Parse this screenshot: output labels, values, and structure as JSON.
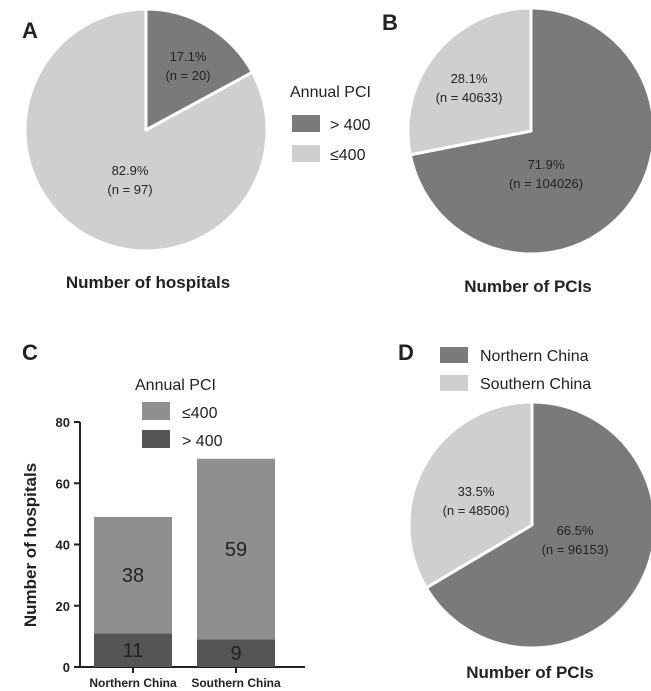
{
  "colors": {
    "dark": "#7a7a7a",
    "light": "#cfcfcf",
    "bar_light": "#8f8f8f",
    "bar_dark": "#555555"
  },
  "panels": {
    "A": {
      "letter": "A",
      "caption": "Number of hospitals"
    },
    "B": {
      "letter": "B",
      "caption": "Number of PCIs"
    },
    "C": {
      "letter": "C"
    },
    "D": {
      "letter": "D",
      "caption": "Number of PCIs"
    }
  },
  "legend_ab": {
    "title": "Annual PCI",
    "items": [
      "> 400",
      "≤400"
    ]
  },
  "legend_c": {
    "title": "Annual PCI",
    "items": [
      "≤400",
      "> 400"
    ]
  },
  "legend_d": {
    "items": [
      "Northern China",
      "Southern China"
    ]
  },
  "chart_data": [
    {
      "type": "pie",
      "panel": "A",
      "caption": "Number of hospitals",
      "slices": [
        {
          "label": "> 400",
          "value": 20,
          "percent": "17.1%",
          "n_text": "(n = 20)"
        },
        {
          "label": "≤400",
          "value": 97,
          "percent": "82.9%",
          "n_text": "(n = 97)"
        }
      ]
    },
    {
      "type": "pie",
      "panel": "B",
      "caption": "Number of PCIs",
      "slices": [
        {
          "label": "> 400",
          "value": 104026,
          "percent": "71.9%",
          "n_text": "(n = 104026)"
        },
        {
          "label": "≤400",
          "value": 40633,
          "percent": "28.1%",
          "n_text": "(n = 40633)"
        }
      ]
    },
    {
      "type": "bar",
      "panel": "C",
      "stacked": true,
      "categories": [
        "Northern China",
        "Southern China"
      ],
      "series": [
        {
          "name": "> 400",
          "values": [
            11,
            9
          ]
        },
        {
          "name": "≤400",
          "values": [
            38,
            59
          ]
        }
      ],
      "ylabel": "Number of hospitals",
      "ylim": [
        0,
        80
      ],
      "yticks": [
        0,
        20,
        40,
        60,
        80
      ],
      "legend_title": "Annual PCI"
    },
    {
      "type": "pie",
      "panel": "D",
      "caption": "Number of PCIs",
      "slices": [
        {
          "label": "Northern China",
          "value": 96153,
          "percent": "66.5%",
          "n_text": "(n = 96153)"
        },
        {
          "label": "Southern China",
          "value": 48506,
          "percent": "33.5%",
          "n_text": "(n = 48506)"
        }
      ]
    }
  ]
}
